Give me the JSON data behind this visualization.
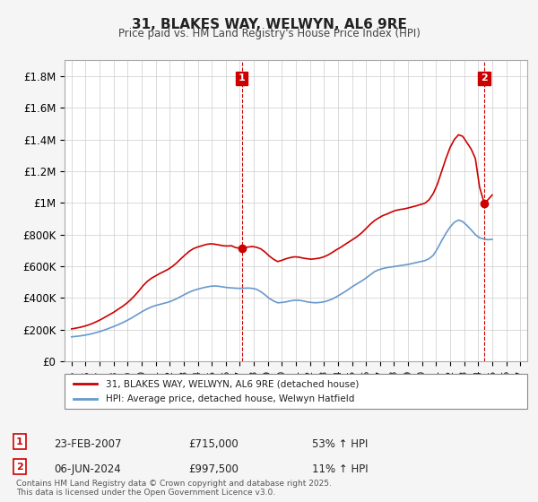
{
  "title": "31, BLAKES WAY, WELWYN, AL6 9RE",
  "subtitle": "Price paid vs. HM Land Registry's House Price Index (HPI)",
  "background_color": "#f5f5f5",
  "plot_bg_color": "#ffffff",
  "grid_color": "#cccccc",
  "red_color": "#cc0000",
  "blue_color": "#6699cc",
  "dashed_color": "#cc0000",
  "xlim_start": 1994.5,
  "xlim_end": 2027.5,
  "ylim_min": 0,
  "ylim_max": 1900000,
  "yticks": [
    0,
    200000,
    400000,
    600000,
    800000,
    1000000,
    1200000,
    1400000,
    1600000,
    1800000
  ],
  "ytick_labels": [
    "£0",
    "£200K",
    "£400K",
    "£600K",
    "£800K",
    "£1M",
    "£1.2M",
    "£1.4M",
    "£1.6M",
    "£1.8M"
  ],
  "xtick_start": 1995,
  "xtick_end": 2027,
  "xtick_step": 1,
  "legend1_label": "31, BLAKES WAY, WELWYN, AL6 9RE (detached house)",
  "legend2_label": "HPI: Average price, detached house, Welwyn Hatfield",
  "transaction1_date": "23-FEB-2007",
  "transaction1_price": "£715,000",
  "transaction1_hpi": "53% ↑ HPI",
  "transaction1_x": 2007.15,
  "transaction1_y": 715000,
  "transaction2_date": "06-JUN-2024",
  "transaction2_price": "£997,500",
  "transaction2_hpi": "11% ↑ HPI",
  "transaction2_x": 2024.43,
  "transaction2_y": 997500,
  "footer": "Contains HM Land Registry data © Crown copyright and database right 2025.\nThis data is licensed under the Open Government Licence v3.0.",
  "red_series_x": [
    1995.0,
    1995.3,
    1995.6,
    1995.9,
    1996.2,
    1996.5,
    1996.8,
    1997.1,
    1997.4,
    1997.7,
    1998.0,
    1998.3,
    1998.6,
    1998.9,
    1999.2,
    1999.5,
    1999.8,
    2000.1,
    2000.4,
    2000.7,
    2001.0,
    2001.3,
    2001.6,
    2001.9,
    2002.2,
    2002.5,
    2002.8,
    2003.1,
    2003.4,
    2003.7,
    2004.0,
    2004.3,
    2004.6,
    2004.9,
    2005.2,
    2005.5,
    2005.8,
    2006.1,
    2006.4,
    2006.7,
    2007.0,
    2007.15,
    2007.3,
    2007.6,
    2007.9,
    2008.2,
    2008.5,
    2008.8,
    2009.1,
    2009.4,
    2009.7,
    2010.0,
    2010.3,
    2010.6,
    2010.9,
    2011.2,
    2011.5,
    2011.8,
    2012.1,
    2012.4,
    2012.7,
    2013.0,
    2013.3,
    2013.6,
    2013.9,
    2014.2,
    2014.5,
    2014.8,
    2015.1,
    2015.4,
    2015.7,
    2016.0,
    2016.3,
    2016.6,
    2016.9,
    2017.2,
    2017.5,
    2017.8,
    2018.1,
    2018.4,
    2018.7,
    2019.0,
    2019.3,
    2019.6,
    2019.9,
    2020.2,
    2020.5,
    2020.8,
    2021.1,
    2021.4,
    2021.7,
    2022.0,
    2022.3,
    2022.6,
    2022.9,
    2023.2,
    2023.5,
    2023.8,
    2024.1,
    2024.43,
    2024.7,
    2025.0
  ],
  "red_series_y": [
    205000,
    210000,
    215000,
    222000,
    230000,
    240000,
    252000,
    265000,
    280000,
    295000,
    310000,
    328000,
    345000,
    365000,
    388000,
    415000,
    445000,
    478000,
    505000,
    525000,
    540000,
    555000,
    568000,
    582000,
    600000,
    622000,
    648000,
    672000,
    695000,
    712000,
    722000,
    730000,
    738000,
    742000,
    740000,
    735000,
    730000,
    728000,
    730000,
    718000,
    715000,
    715000,
    718000,
    722000,
    725000,
    720000,
    710000,
    690000,
    665000,
    645000,
    630000,
    638000,
    648000,
    655000,
    660000,
    658000,
    652000,
    648000,
    645000,
    648000,
    652000,
    660000,
    672000,
    688000,
    705000,
    720000,
    738000,
    755000,
    772000,
    790000,
    812000,
    838000,
    865000,
    888000,
    905000,
    920000,
    930000,
    942000,
    952000,
    958000,
    962000,
    968000,
    975000,
    982000,
    990000,
    998000,
    1020000,
    1060000,
    1120000,
    1200000,
    1280000,
    1350000,
    1400000,
    1430000,
    1420000,
    1380000,
    1340000,
    1280000,
    1100000,
    997500,
    1020000,
    1050000
  ],
  "blue_series_x": [
    1995.0,
    1995.3,
    1995.6,
    1995.9,
    1996.2,
    1996.5,
    1996.8,
    1997.1,
    1997.4,
    1997.7,
    1998.0,
    1998.3,
    1998.6,
    1998.9,
    1999.2,
    1999.5,
    1999.8,
    2000.1,
    2000.4,
    2000.7,
    2001.0,
    2001.3,
    2001.6,
    2001.9,
    2002.2,
    2002.5,
    2002.8,
    2003.1,
    2003.4,
    2003.7,
    2004.0,
    2004.3,
    2004.6,
    2004.9,
    2005.2,
    2005.5,
    2005.8,
    2006.1,
    2006.4,
    2006.7,
    2007.0,
    2007.3,
    2007.6,
    2007.9,
    2008.2,
    2008.5,
    2008.8,
    2009.1,
    2009.4,
    2009.7,
    2010.0,
    2010.3,
    2010.6,
    2010.9,
    2011.2,
    2011.5,
    2011.8,
    2012.1,
    2012.4,
    2012.7,
    2013.0,
    2013.3,
    2013.6,
    2013.9,
    2014.2,
    2014.5,
    2014.8,
    2015.1,
    2015.4,
    2015.7,
    2016.0,
    2016.3,
    2016.6,
    2016.9,
    2017.2,
    2017.5,
    2017.8,
    2018.1,
    2018.4,
    2018.7,
    2019.0,
    2019.3,
    2019.6,
    2019.9,
    2020.2,
    2020.5,
    2020.8,
    2021.1,
    2021.4,
    2021.7,
    2022.0,
    2022.3,
    2022.6,
    2022.9,
    2023.2,
    2023.5,
    2023.8,
    2024.1,
    2024.4,
    2024.7,
    2025.0
  ],
  "blue_series_y": [
    155000,
    158000,
    161000,
    165000,
    170000,
    176000,
    183000,
    191000,
    200000,
    210000,
    220000,
    231000,
    243000,
    256000,
    270000,
    286000,
    302000,
    318000,
    332000,
    344000,
    353000,
    360000,
    367000,
    374000,
    384000,
    396000,
    410000,
    424000,
    437000,
    448000,
    456000,
    463000,
    469000,
    474000,
    476000,
    474000,
    470000,
    466000,
    464000,
    462000,
    461000,
    462000,
    463000,
    461000,
    455000,
    440000,
    420000,
    398000,
    382000,
    370000,
    372000,
    376000,
    382000,
    386000,
    386000,
    382000,
    376000,
    372000,
    370000,
    372000,
    376000,
    384000,
    394000,
    408000,
    424000,
    440000,
    458000,
    476000,
    492000,
    508000,
    526000,
    546000,
    566000,
    578000,
    586000,
    592000,
    596000,
    600000,
    604000,
    608000,
    612000,
    618000,
    624000,
    630000,
    636000,
    648000,
    670000,
    712000,
    762000,
    808000,
    848000,
    878000,
    892000,
    882000,
    858000,
    830000,
    800000,
    780000,
    772000,
    768000,
    770000
  ]
}
